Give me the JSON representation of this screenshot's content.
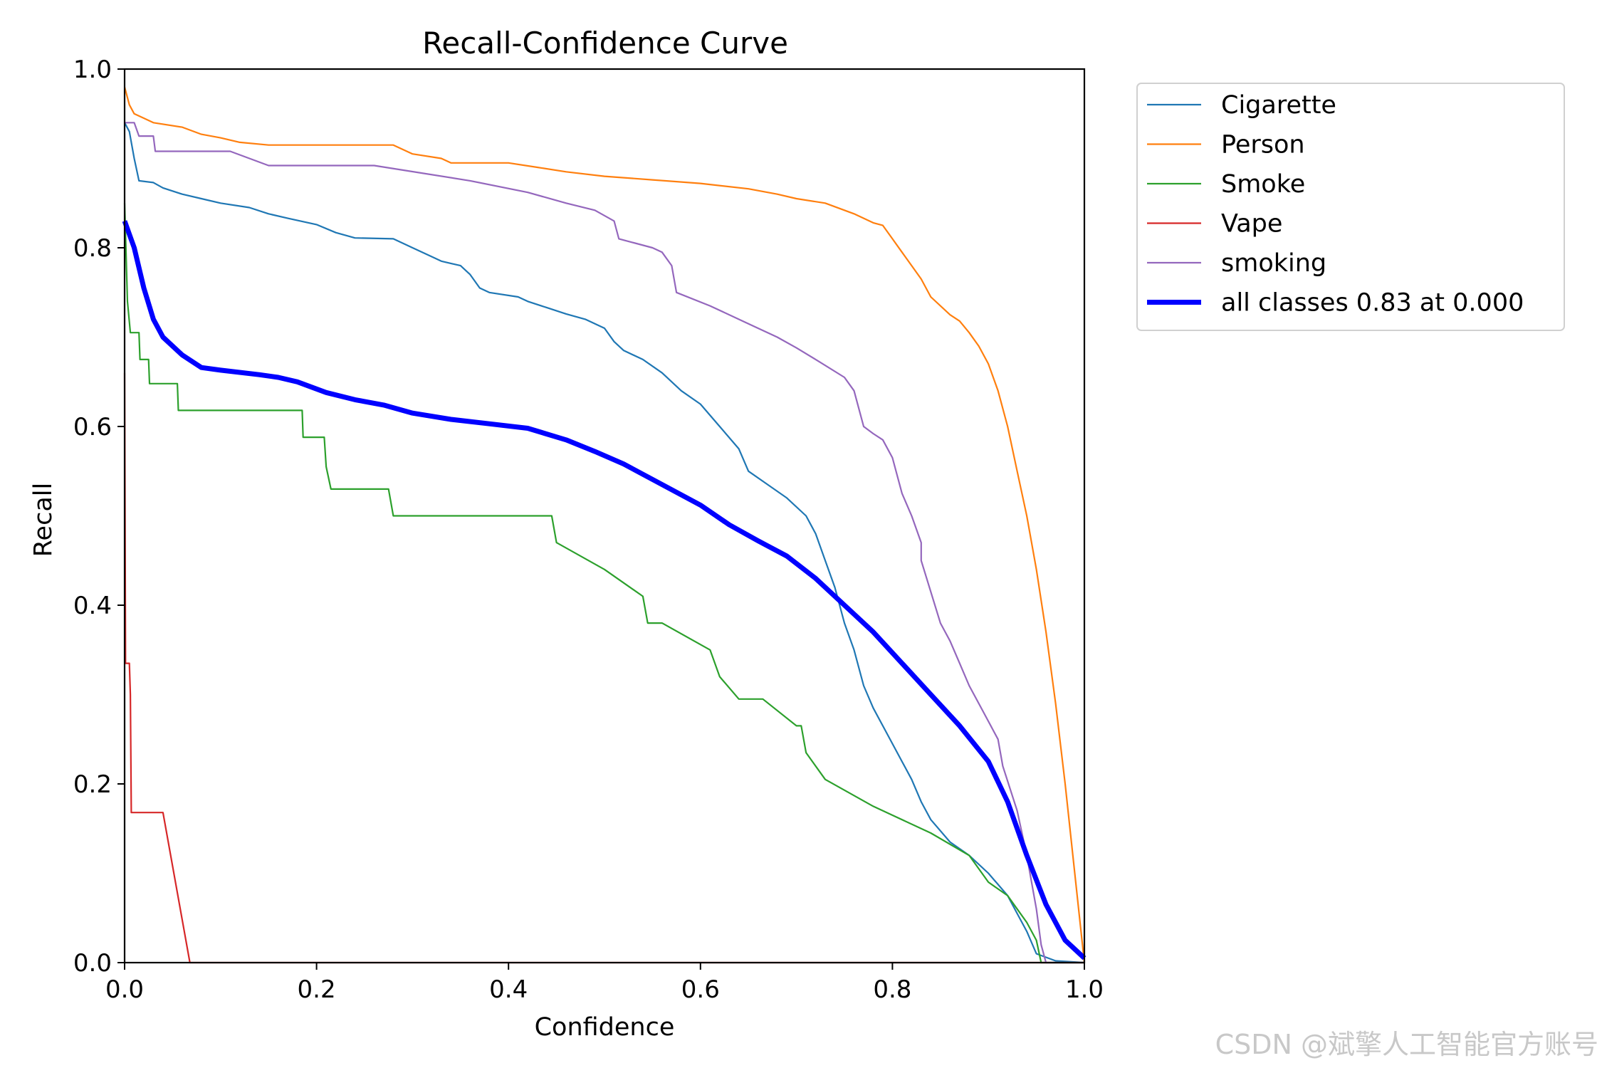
{
  "chart_data": {
    "type": "line",
    "title": "Recall-Confidence Curve",
    "xlabel": "Confidence",
    "ylabel": "Recall",
    "xlim": [
      0,
      1
    ],
    "ylim": [
      0,
      1
    ],
    "xticks": [
      "0.0",
      "0.2",
      "0.4",
      "0.6",
      "0.8",
      "1.0"
    ],
    "yticks": [
      "0.0",
      "0.2",
      "0.4",
      "0.6",
      "0.8",
      "1.0"
    ],
    "legend_position": "outside-top-right",
    "grid": false,
    "series": [
      {
        "name": "Cigarette",
        "color": "#1f77b4",
        "width": 2.2,
        "points": [
          [
            0,
            0.94
          ],
          [
            0.005,
            0.93
          ],
          [
            0.01,
            0.9
          ],
          [
            0.015,
            0.875
          ],
          [
            0.03,
            0.873
          ],
          [
            0.04,
            0.867
          ],
          [
            0.06,
            0.86
          ],
          [
            0.08,
            0.855
          ],
          [
            0.1,
            0.85
          ],
          [
            0.13,
            0.845
          ],
          [
            0.15,
            0.838
          ],
          [
            0.17,
            0.833
          ],
          [
            0.2,
            0.826
          ],
          [
            0.22,
            0.817
          ],
          [
            0.24,
            0.811
          ],
          [
            0.28,
            0.81
          ],
          [
            0.3,
            0.8
          ],
          [
            0.32,
            0.79
          ],
          [
            0.33,
            0.785
          ],
          [
            0.35,
            0.78
          ],
          [
            0.36,
            0.77
          ],
          [
            0.37,
            0.755
          ],
          [
            0.38,
            0.75
          ],
          [
            0.41,
            0.745
          ],
          [
            0.42,
            0.74
          ],
          [
            0.44,
            0.733
          ],
          [
            0.46,
            0.726
          ],
          [
            0.48,
            0.72
          ],
          [
            0.5,
            0.71
          ],
          [
            0.51,
            0.695
          ],
          [
            0.52,
            0.685
          ],
          [
            0.54,
            0.675
          ],
          [
            0.56,
            0.66
          ],
          [
            0.58,
            0.64
          ],
          [
            0.6,
            0.625
          ],
          [
            0.62,
            0.6
          ],
          [
            0.64,
            0.575
          ],
          [
            0.65,
            0.55
          ],
          [
            0.67,
            0.535
          ],
          [
            0.69,
            0.52
          ],
          [
            0.71,
            0.5
          ],
          [
            0.72,
            0.48
          ],
          [
            0.73,
            0.45
          ],
          [
            0.74,
            0.42
          ],
          [
            0.75,
            0.38
          ],
          [
            0.76,
            0.35
          ],
          [
            0.77,
            0.31
          ],
          [
            0.78,
            0.285
          ],
          [
            0.79,
            0.265
          ],
          [
            0.8,
            0.245
          ],
          [
            0.81,
            0.225
          ],
          [
            0.82,
            0.205
          ],
          [
            0.83,
            0.18
          ],
          [
            0.84,
            0.16
          ],
          [
            0.86,
            0.135
          ],
          [
            0.88,
            0.12
          ],
          [
            0.9,
            0.1
          ],
          [
            0.92,
            0.075
          ],
          [
            0.93,
            0.055
          ],
          [
            0.94,
            0.035
          ],
          [
            0.95,
            0.01
          ],
          [
            0.97,
            0.002
          ],
          [
            1.0,
            0
          ]
        ]
      },
      {
        "name": "Person",
        "color": "#ff7f0e",
        "width": 2.2,
        "points": [
          [
            0,
            0.98
          ],
          [
            0.005,
            0.96
          ],
          [
            0.01,
            0.95
          ],
          [
            0.02,
            0.945
          ],
          [
            0.03,
            0.94
          ],
          [
            0.06,
            0.935
          ],
          [
            0.08,
            0.927
          ],
          [
            0.1,
            0.923
          ],
          [
            0.12,
            0.918
          ],
          [
            0.15,
            0.915
          ],
          [
            0.28,
            0.915
          ],
          [
            0.3,
            0.905
          ],
          [
            0.33,
            0.9
          ],
          [
            0.34,
            0.895
          ],
          [
            0.4,
            0.895
          ],
          [
            0.43,
            0.89
          ],
          [
            0.46,
            0.885
          ],
          [
            0.5,
            0.88
          ],
          [
            0.55,
            0.876
          ],
          [
            0.6,
            0.872
          ],
          [
            0.65,
            0.866
          ],
          [
            0.68,
            0.86
          ],
          [
            0.7,
            0.855
          ],
          [
            0.73,
            0.85
          ],
          [
            0.76,
            0.838
          ],
          [
            0.78,
            0.828
          ],
          [
            0.79,
            0.825
          ],
          [
            0.8,
            0.81
          ],
          [
            0.81,
            0.795
          ],
          [
            0.82,
            0.78
          ],
          [
            0.83,
            0.765
          ],
          [
            0.84,
            0.745
          ],
          [
            0.86,
            0.725
          ],
          [
            0.87,
            0.718
          ],
          [
            0.88,
            0.705
          ],
          [
            0.89,
            0.69
          ],
          [
            0.9,
            0.67
          ],
          [
            0.91,
            0.64
          ],
          [
            0.92,
            0.6
          ],
          [
            0.93,
            0.55
          ],
          [
            0.94,
            0.5
          ],
          [
            0.95,
            0.44
          ],
          [
            0.96,
            0.37
          ],
          [
            0.97,
            0.29
          ],
          [
            0.98,
            0.2
          ],
          [
            0.99,
            0.1
          ],
          [
            1.0,
            0
          ]
        ]
      },
      {
        "name": "Smoke",
        "color": "#2ca02c",
        "width": 2.2,
        "points": [
          [
            0,
            0.85
          ],
          [
            0.003,
            0.74
          ],
          [
            0.006,
            0.705
          ],
          [
            0.015,
            0.705
          ],
          [
            0.016,
            0.675
          ],
          [
            0.025,
            0.675
          ],
          [
            0.026,
            0.648
          ],
          [
            0.055,
            0.648
          ],
          [
            0.056,
            0.618
          ],
          [
            0.185,
            0.618
          ],
          [
            0.186,
            0.588
          ],
          [
            0.208,
            0.588
          ],
          [
            0.21,
            0.555
          ],
          [
            0.215,
            0.53
          ],
          [
            0.275,
            0.53
          ],
          [
            0.28,
            0.5
          ],
          [
            0.445,
            0.5
          ],
          [
            0.45,
            0.47
          ],
          [
            0.5,
            0.44
          ],
          [
            0.54,
            0.41
          ],
          [
            0.545,
            0.38
          ],
          [
            0.56,
            0.38
          ],
          [
            0.61,
            0.35
          ],
          [
            0.62,
            0.32
          ],
          [
            0.64,
            0.295
          ],
          [
            0.665,
            0.295
          ],
          [
            0.7,
            0.265
          ],
          [
            0.705,
            0.265
          ],
          [
            0.71,
            0.235
          ],
          [
            0.73,
            0.205
          ],
          [
            0.78,
            0.175
          ],
          [
            0.84,
            0.145
          ],
          [
            0.88,
            0.12
          ],
          [
            0.9,
            0.09
          ],
          [
            0.92,
            0.075
          ],
          [
            0.93,
            0.06
          ],
          [
            0.94,
            0.045
          ],
          [
            0.95,
            0.025
          ],
          [
            0.955,
            0
          ],
          [
            1.0,
            0
          ]
        ]
      },
      {
        "name": "Vape",
        "color": "#d62728",
        "width": 2.2,
        "points": [
          [
            0,
            0.66
          ],
          [
            0.001,
            0.335
          ],
          [
            0.005,
            0.335
          ],
          [
            0.006,
            0.3
          ],
          [
            0.007,
            0.168
          ],
          [
            0.04,
            0.168
          ],
          [
            0.068,
            0
          ],
          [
            1.0,
            0
          ]
        ]
      },
      {
        "name": "smoking",
        "color": "#9467bd",
        "width": 2.2,
        "points": [
          [
            0,
            0.94
          ],
          [
            0.01,
            0.94
          ],
          [
            0.015,
            0.925
          ],
          [
            0.03,
            0.925
          ],
          [
            0.032,
            0.908
          ],
          [
            0.11,
            0.908
          ],
          [
            0.15,
            0.892
          ],
          [
            0.26,
            0.892
          ],
          [
            0.36,
            0.875
          ],
          [
            0.42,
            0.862
          ],
          [
            0.46,
            0.85
          ],
          [
            0.49,
            0.842
          ],
          [
            0.51,
            0.83
          ],
          [
            0.515,
            0.81
          ],
          [
            0.55,
            0.8
          ],
          [
            0.56,
            0.795
          ],
          [
            0.57,
            0.78
          ],
          [
            0.575,
            0.75
          ],
          [
            0.61,
            0.735
          ],
          [
            0.65,
            0.715
          ],
          [
            0.68,
            0.7
          ],
          [
            0.7,
            0.688
          ],
          [
            0.72,
            0.675
          ],
          [
            0.75,
            0.655
          ],
          [
            0.76,
            0.64
          ],
          [
            0.77,
            0.6
          ],
          [
            0.78,
            0.592
          ],
          [
            0.79,
            0.585
          ],
          [
            0.8,
            0.565
          ],
          [
            0.81,
            0.525
          ],
          [
            0.82,
            0.5
          ],
          [
            0.83,
            0.47
          ],
          [
            0.83,
            0.45
          ],
          [
            0.84,
            0.415
          ],
          [
            0.85,
            0.38
          ],
          [
            0.86,
            0.36
          ],
          [
            0.87,
            0.335
          ],
          [
            0.88,
            0.31
          ],
          [
            0.89,
            0.29
          ],
          [
            0.9,
            0.27
          ],
          [
            0.91,
            0.25
          ],
          [
            0.915,
            0.22
          ],
          [
            0.93,
            0.17
          ],
          [
            0.94,
            0.12
          ],
          [
            0.95,
            0.06
          ],
          [
            0.955,
            0.02
          ],
          [
            0.96,
            0
          ],
          [
            1.0,
            0
          ]
        ]
      },
      {
        "name": "all classes 0.83 at 0.000",
        "color": "#0000ff",
        "width": 7,
        "points": [
          [
            0,
            0.83
          ],
          [
            0.01,
            0.8
          ],
          [
            0.02,
            0.755
          ],
          [
            0.03,
            0.72
          ],
          [
            0.04,
            0.7
          ],
          [
            0.06,
            0.68
          ],
          [
            0.08,
            0.666
          ],
          [
            0.1,
            0.663
          ],
          [
            0.14,
            0.658
          ],
          [
            0.16,
            0.655
          ],
          [
            0.18,
            0.65
          ],
          [
            0.21,
            0.638
          ],
          [
            0.24,
            0.63
          ],
          [
            0.27,
            0.624
          ],
          [
            0.3,
            0.615
          ],
          [
            0.34,
            0.608
          ],
          [
            0.38,
            0.603
          ],
          [
            0.42,
            0.598
          ],
          [
            0.46,
            0.585
          ],
          [
            0.49,
            0.572
          ],
          [
            0.52,
            0.558
          ],
          [
            0.56,
            0.535
          ],
          [
            0.6,
            0.512
          ],
          [
            0.63,
            0.49
          ],
          [
            0.66,
            0.472
          ],
          [
            0.69,
            0.455
          ],
          [
            0.72,
            0.43
          ],
          [
            0.75,
            0.4
          ],
          [
            0.78,
            0.37
          ],
          [
            0.81,
            0.335
          ],
          [
            0.84,
            0.3
          ],
          [
            0.87,
            0.265
          ],
          [
            0.9,
            0.225
          ],
          [
            0.92,
            0.18
          ],
          [
            0.94,
            0.12
          ],
          [
            0.96,
            0.065
          ],
          [
            0.98,
            0.025
          ],
          [
            1.0,
            0.005
          ]
        ]
      }
    ],
    "watermark": "CSDN @斌擎人工智能官方账号"
  }
}
